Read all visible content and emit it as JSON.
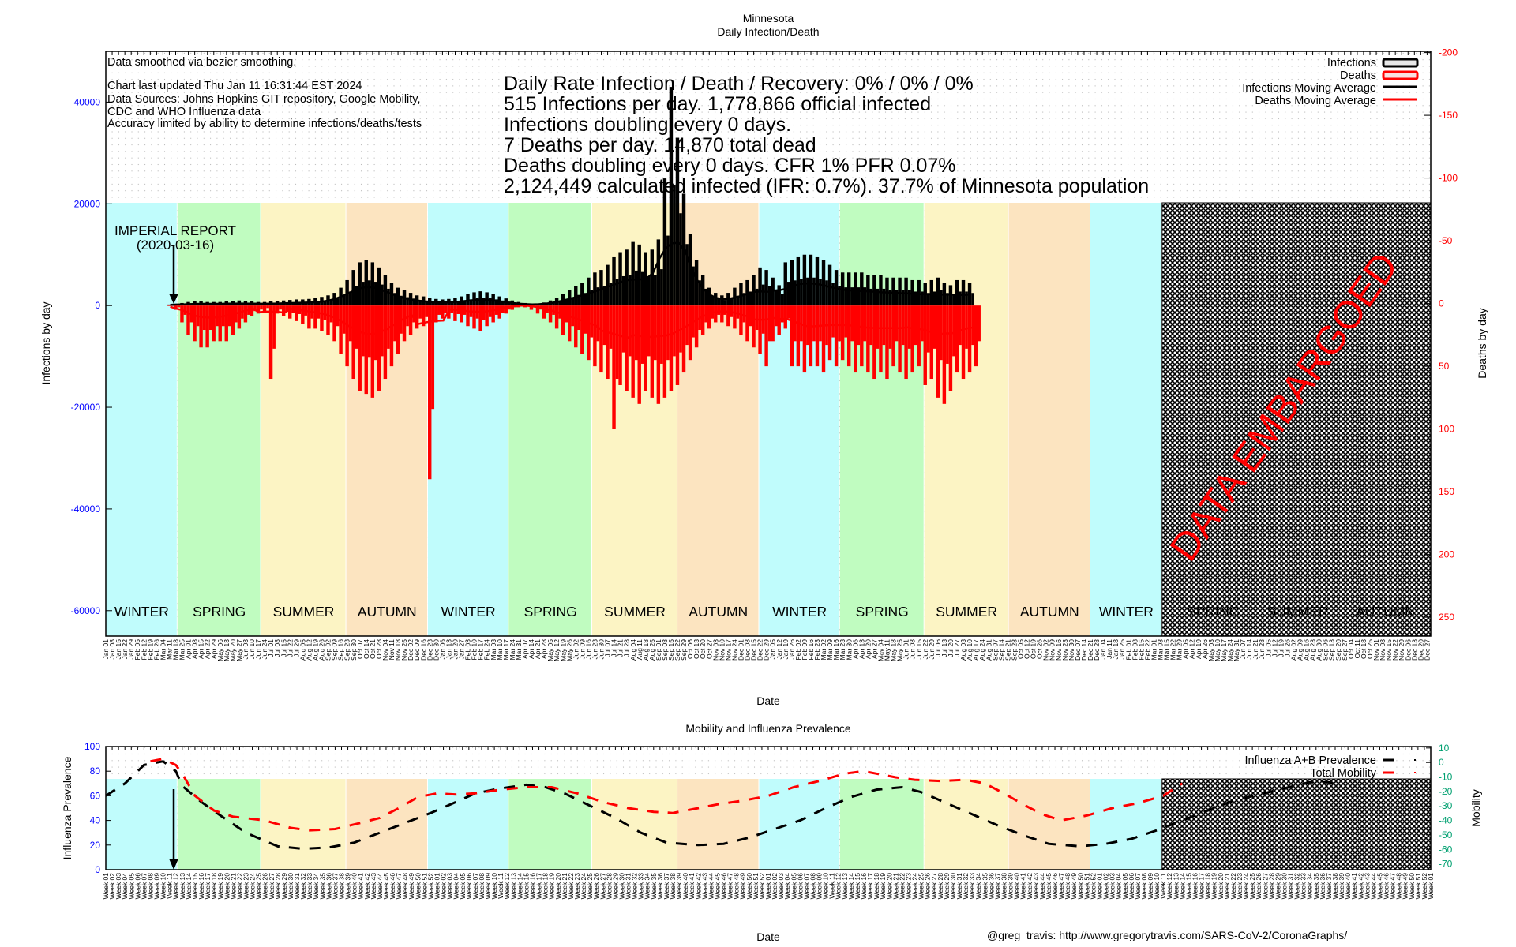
{
  "main_chart_title": "Minnesota",
  "main_chart_subtitle": "Daily Infection/Death",
  "notes": {
    "smoothing": "Data smoothed via bezier smoothing.",
    "updated": "Chart last updated Thu Jan 11 16:31:44 EST 2024",
    "sources_1": "Data Sources: Johns Hopkins GIT repository, Google Mobility,",
    "sources_2": "CDC and WHO Influenza data",
    "accuracy": "Accuracy limited by ability to determine infections/deaths/tests"
  },
  "stats": [
    "Daily Rate Infection / Death / Recovery: 0% / 0% / 0%",
    "515 Infections per day.  1,778,866 official infected",
    "Infections doubling every 0 days.",
    "7 Deaths per day.  14,870 total dead",
    "Deaths doubling every 0 days.  CFR 1%  PFR 0.07%",
    "2,124,449 calculated infected (IFR: 0.7%).  37.7% of Minnesota population"
  ],
  "annotation": {
    "line1": "IMPERIAL REPORT",
    "line2": "(2020-03-16)"
  },
  "embargo_label": "DATA EMBARGOED",
  "credit": "@greg_travis: http://www.gregorytravis.com/SARS-CoV-2/CoronaGraphs/",
  "colors": {
    "infections": "#000000",
    "deaths": "#ff0000",
    "left_axis": "#0000ff",
    "right_axis_main": "#ff0000",
    "right_axis_mobility": "#00a070",
    "winter": "#c0fcfc",
    "spring": "#c0fcc0",
    "summer": "#fcf4c4",
    "autumn": "#fce4c0"
  },
  "chart_data": [
    {
      "type": "bar",
      "title": "Minnesota Daily Infection/Death",
      "xlabel": "Date",
      "ylabel": "Infections by day",
      "y2label": "Deaths by day",
      "ylim": [
        -65000,
        50000
      ],
      "y2lim": [
        -201,
        265
      ],
      "y2_inverted_direction": "deaths plotted downward from zero",
      "yticks": [
        -60000,
        -40000,
        -20000,
        0,
        20000,
        40000
      ],
      "y2ticks": [
        -200,
        -150,
        -100,
        -50,
        0,
        50,
        100,
        150,
        200,
        250
      ],
      "x_start": "2020-01-01",
      "x_end": "2023-12-31",
      "x_tick_step_days": 7,
      "grid": true,
      "legend_position": "top-right",
      "legend": [
        "Infections",
        "Deaths",
        "Infections Moving Average",
        "Deaths Moving Average"
      ],
      "seasons": [
        {
          "label": "WINTER",
          "start": "2020-01-01",
          "end": "2020-03-20",
          "kind": "winter"
        },
        {
          "label": "SPRING",
          "start": "2020-03-20",
          "end": "2020-06-20",
          "kind": "spring"
        },
        {
          "label": "SUMMER",
          "start": "2020-06-20",
          "end": "2020-09-22",
          "kind": "summer"
        },
        {
          "label": "AUTUMN",
          "start": "2020-09-22",
          "end": "2020-12-21",
          "kind": "autumn"
        },
        {
          "label": "WINTER",
          "start": "2020-12-21",
          "end": "2021-03-20",
          "kind": "winter"
        },
        {
          "label": "SPRING",
          "start": "2021-03-20",
          "end": "2021-06-20",
          "kind": "spring"
        },
        {
          "label": "SUMMER",
          "start": "2021-06-20",
          "end": "2021-09-22",
          "kind": "summer"
        },
        {
          "label": "AUTUMN",
          "start": "2021-09-22",
          "end": "2021-12-21",
          "kind": "autumn"
        },
        {
          "label": "WINTER",
          "start": "2021-12-21",
          "end": "2022-03-20",
          "kind": "winter"
        },
        {
          "label": "SPRING",
          "start": "2022-03-20",
          "end": "2022-06-21",
          "kind": "spring"
        },
        {
          "label": "SUMMER",
          "start": "2022-06-21",
          "end": "2022-09-22",
          "kind": "summer"
        },
        {
          "label": "AUTUMN",
          "start": "2022-09-22",
          "end": "2022-12-21",
          "kind": "autumn"
        },
        {
          "label": "WINTER",
          "start": "2022-12-21",
          "end": "2023-03-10",
          "kind": "winter"
        },
        {
          "label": "SPRING",
          "start": "2023-03-20",
          "end": "2023-06-21",
          "kind": "embargo"
        },
        {
          "label": "SUMMER",
          "start": "2023-06-21",
          "end": "2023-09-22",
          "kind": "embargo"
        },
        {
          "label": "AUTUMN",
          "start": "2023-09-22",
          "end": "2023-12-31",
          "kind": "embargo"
        }
      ],
      "embargo_start": "2023-03-10",
      "annotation_date": "2020-03-16",
      "weekly_series_start": "2020-03-09",
      "infections_weekly_peak": [
        200,
        300,
        500,
        700,
        800,
        800,
        700,
        700,
        700,
        800,
        900,
        1000,
        900,
        800,
        700,
        700,
        800,
        900,
        1000,
        1100,
        1200,
        1200,
        1300,
        1500,
        1700,
        2000,
        2500,
        3500,
        5000,
        7000,
        8500,
        9000,
        8500,
        7500,
        6000,
        4500,
        3500,
        3000,
        2500,
        2000,
        1800,
        1500,
        1300,
        1200,
        1300,
        1500,
        1800,
        2200,
        2600,
        2800,
        2600,
        2200,
        1800,
        1400,
        1000,
        700,
        500,
        400,
        400,
        600,
        1000,
        1500,
        2200,
        3000,
        3800,
        4500,
        5500,
        6500,
        7000,
        8000,
        9500,
        10500,
        11000,
        12500,
        12000,
        10500,
        11000,
        13000,
        25000,
        43000,
        33000,
        22000,
        14000,
        9000,
        6000,
        3500,
        2500,
        2000,
        2500,
        3500,
        4500,
        5000,
        6000,
        7500,
        7000,
        5500,
        4000,
        8500,
        9000,
        9500,
        10000,
        10000,
        9500,
        9000,
        8000,
        7000,
        6500,
        6500,
        6500,
        6500,
        6000,
        6000,
        6000,
        5500,
        5500,
        5500,
        5500,
        5000,
        5000,
        4500,
        5000,
        5500,
        4500,
        4000,
        5000,
        5000,
        4500
      ],
      "infections_moving_average_peak_smoothed": 9000,
      "deaths_weekly_peak": [
        2,
        5,
        15,
        25,
        30,
        35,
        35,
        30,
        30,
        30,
        25,
        20,
        15,
        10,
        8,
        6,
        60,
        8,
        10,
        12,
        14,
        16,
        20,
        20,
        22,
        25,
        30,
        40,
        50,
        60,
        70,
        72,
        75,
        70,
        60,
        50,
        40,
        30,
        25,
        20,
        18,
        140,
        15,
        12,
        12,
        14,
        15,
        18,
        20,
        22,
        18,
        15,
        12,
        8,
        5,
        3,
        3,
        5,
        8,
        12,
        15,
        20,
        25,
        30,
        35,
        40,
        45,
        50,
        55,
        60,
        100,
        65,
        70,
        75,
        80,
        70,
        75,
        80,
        75,
        70,
        65,
        55,
        45,
        35,
        25,
        20,
        15,
        15,
        18,
        20,
        25,
        30,
        35,
        40,
        50,
        30,
        25,
        20,
        50,
        50,
        55,
        50,
        50,
        55,
        45,
        50,
        45,
        50,
        55,
        50,
        55,
        60,
        55,
        60,
        50,
        55,
        60,
        55,
        50,
        65,
        60,
        75,
        80,
        70,
        55,
        60,
        55,
        50
      ],
      "deaths_moving_average_max": 45
    },
    {
      "type": "line",
      "title": "Mobility and Influenza Prevalence",
      "xlabel": "Date",
      "ylabel": "Influenza Prevalence",
      "y2label": "Mobility",
      "ylim": [
        0,
        100
      ],
      "y2lim": [
        -74,
        11
      ],
      "yticks": [
        0,
        20,
        40,
        60,
        80,
        100
      ],
      "y2ticks": [
        -70,
        -60,
        -50,
        -40,
        -30,
        -20,
        -10,
        0,
        10
      ],
      "x_tick_format": "Week NN",
      "legend_position": "top-right",
      "legend": [
        "Influenza A+B Prevalence",
        "Total Mobility"
      ],
      "series": [
        {
          "name": "Influenza A+B Prevalence",
          "points": [
            [
              0,
              60
            ],
            [
              3,
              70
            ],
            [
              6,
              85
            ],
            [
              9,
              88
            ],
            [
              11,
              80
            ],
            [
              12,
              68
            ],
            [
              15,
              55
            ],
            [
              18,
              44
            ],
            [
              22,
              30
            ],
            [
              27,
              19
            ],
            [
              31,
              17
            ],
            [
              35,
              18
            ],
            [
              39,
              22
            ],
            [
              43,
              30
            ],
            [
              47,
              38
            ],
            [
              51,
              46
            ],
            [
              55,
              55
            ],
            [
              58,
              62
            ],
            [
              62,
              66
            ],
            [
              66,
              69
            ],
            [
              69,
              67
            ],
            [
              72,
              62
            ],
            [
              76,
              52
            ],
            [
              80,
              42
            ],
            [
              84,
              30
            ],
            [
              88,
              22
            ],
            [
              93,
              20
            ],
            [
              97,
              21
            ],
            [
              101,
              26
            ],
            [
              105,
              33
            ],
            [
              109,
              40
            ],
            [
              113,
              50
            ],
            [
              117,
              59
            ],
            [
              121,
              65
            ],
            [
              125,
              67
            ],
            [
              128,
              63
            ],
            [
              132,
              54
            ],
            [
              136,
              45
            ],
            [
              140,
              36
            ],
            [
              144,
              28
            ],
            [
              148,
              21
            ],
            [
              153,
              19
            ],
            [
              157,
              21
            ],
            [
              161,
              25
            ],
            [
              165,
              32
            ],
            [
              169,
              40
            ],
            [
              173,
              48
            ],
            [
              177,
              56
            ],
            [
              181,
              61
            ],
            [
              185,
              66
            ],
            [
              189,
              71
            ],
            [
              192,
              71
            ],
            [
              194,
              68
            ]
          ]
        },
        {
          "name": "Total Mobility",
          "points": [
            [
              7,
              88
            ],
            [
              9,
              90
            ],
            [
              11,
              85
            ],
            [
              12,
              78
            ],
            [
              14,
              60
            ],
            [
              17,
              48
            ],
            [
              20,
              43
            ],
            [
              25,
              40
            ],
            [
              29,
              34
            ],
            [
              32,
              32
            ],
            [
              36,
              33
            ],
            [
              40,
              38
            ],
            [
              43,
              42
            ],
            [
              46,
              50
            ],
            [
              49,
              59
            ],
            [
              52,
              62
            ],
            [
              55,
              61
            ],
            [
              58,
              62
            ],
            [
              62,
              65
            ],
            [
              66,
              67
            ],
            [
              70,
              67
            ],
            [
              74,
              62
            ],
            [
              78,
              55
            ],
            [
              82,
              50
            ],
            [
              86,
              47
            ],
            [
              89,
              46
            ],
            [
              92,
              49
            ],
            [
              96,
              53
            ],
            [
              100,
              56
            ],
            [
              104,
              60
            ],
            [
              108,
              67
            ],
            [
              112,
              72
            ],
            [
              116,
              78
            ],
            [
              119,
              80
            ],
            [
              121,
              78
            ],
            [
              124,
              75
            ],
            [
              127,
              73
            ],
            [
              131,
              72
            ],
            [
              135,
              73
            ],
            [
              138,
              70
            ],
            [
              141,
              62
            ],
            [
              144,
              53
            ],
            [
              147,
              45
            ],
            [
              150,
              40
            ],
            [
              154,
              44
            ],
            [
              158,
              50
            ],
            [
              162,
              54
            ],
            [
              166,
              60
            ],
            [
              169,
              70
            ]
          ]
        }
      ],
      "x_unit": "weeks since 2020-01-01",
      "x_max": 208,
      "embargo_start_week": 166
    }
  ]
}
